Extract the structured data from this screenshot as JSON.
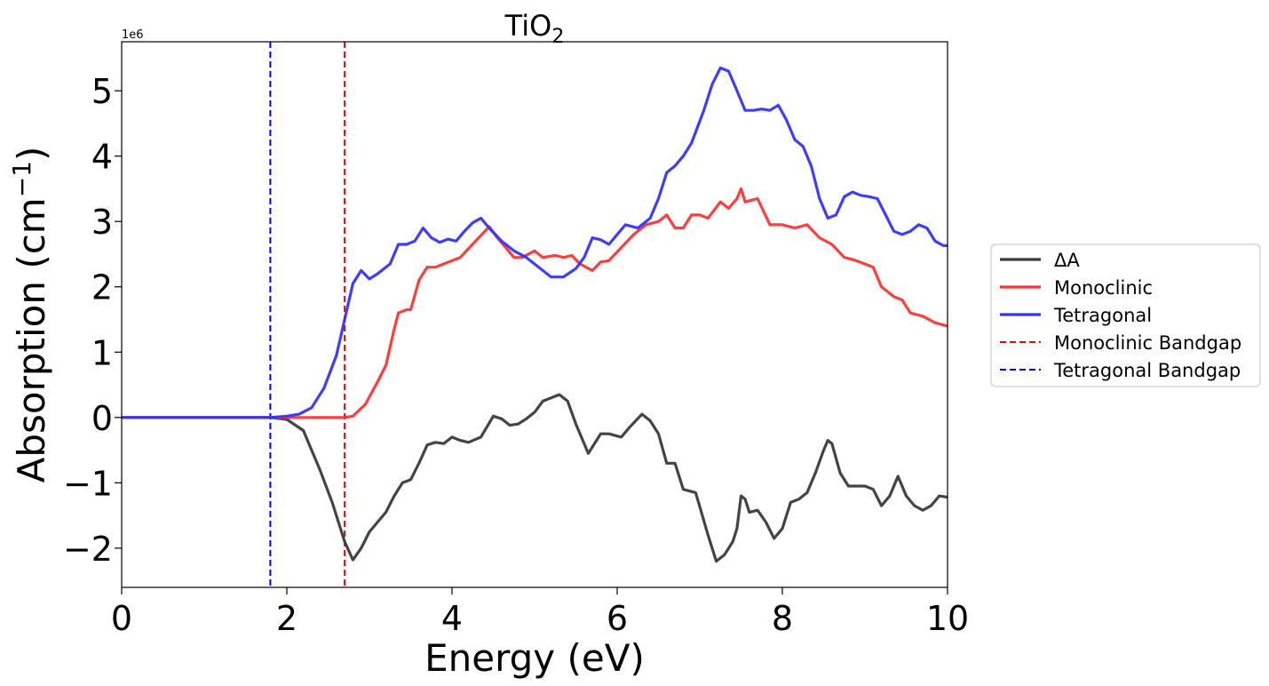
{
  "chart_data": {
    "type": "line",
    "title_main": "TiO",
    "title_sub": "2",
    "xlabel": "Energy (eV)",
    "ylabel_main": "Absorption (cm",
    "ylabel_sup": "−1",
    "ylabel_close": ")",
    "y_offset_text": "1e6",
    "xlim": [
      0,
      10
    ],
    "ylim": [
      -2.6,
      5.75
    ],
    "x_ticks": [
      0,
      2,
      4,
      6,
      8,
      10
    ],
    "x_tick_labels": [
      "0",
      "2",
      "4",
      "6",
      "8",
      "10"
    ],
    "y_ticks": [
      -2,
      -1,
      0,
      1,
      2,
      3,
      4,
      5
    ],
    "y_tick_labels": [
      "−2",
      "−1",
      "0",
      "1",
      "2",
      "3",
      "4",
      "5"
    ],
    "grid": false,
    "legend_position": "outside-right",
    "series": [
      {
        "name": "ΔA",
        "color": "#3a3a3a",
        "style": "solid",
        "points": [
          [
            0,
            0
          ],
          [
            1.8,
            0
          ],
          [
            2.0,
            -0.03
          ],
          [
            2.2,
            -0.2
          ],
          [
            2.4,
            -0.8
          ],
          [
            2.55,
            -1.3
          ],
          [
            2.7,
            -1.9
          ],
          [
            2.8,
            -2.18
          ],
          [
            2.9,
            -2.0
          ],
          [
            3.0,
            -1.75
          ],
          [
            3.2,
            -1.45
          ],
          [
            3.3,
            -1.2
          ],
          [
            3.4,
            -1.0
          ],
          [
            3.5,
            -0.95
          ],
          [
            3.6,
            -0.7
          ],
          [
            3.7,
            -0.42
          ],
          [
            3.8,
            -0.38
          ],
          [
            3.9,
            -0.4
          ],
          [
            4.0,
            -0.3
          ],
          [
            4.1,
            -0.35
          ],
          [
            4.2,
            -0.38
          ],
          [
            4.35,
            -0.3
          ],
          [
            4.5,
            0.02
          ],
          [
            4.6,
            -0.02
          ],
          [
            4.7,
            -0.12
          ],
          [
            4.8,
            -0.1
          ],
          [
            4.9,
            -0.02
          ],
          [
            5.0,
            0.08
          ],
          [
            5.1,
            0.25
          ],
          [
            5.3,
            0.35
          ],
          [
            5.4,
            0.25
          ],
          [
            5.5,
            -0.1
          ],
          [
            5.65,
            -0.55
          ],
          [
            5.8,
            -0.25
          ],
          [
            5.9,
            -0.25
          ],
          [
            6.05,
            -0.3
          ],
          [
            6.15,
            -0.15
          ],
          [
            6.3,
            0.05
          ],
          [
            6.4,
            -0.05
          ],
          [
            6.5,
            -0.25
          ],
          [
            6.6,
            -0.7
          ],
          [
            6.7,
            -0.7
          ],
          [
            6.8,
            -1.1
          ],
          [
            6.95,
            -1.15
          ],
          [
            7.1,
            -1.8
          ],
          [
            7.2,
            -2.2
          ],
          [
            7.3,
            -2.1
          ],
          [
            7.4,
            -1.9
          ],
          [
            7.45,
            -1.7
          ],
          [
            7.5,
            -1.2
          ],
          [
            7.55,
            -1.25
          ],
          [
            7.6,
            -1.45
          ],
          [
            7.7,
            -1.42
          ],
          [
            7.8,
            -1.6
          ],
          [
            7.9,
            -1.85
          ],
          [
            8.0,
            -1.7
          ],
          [
            8.1,
            -1.3
          ],
          [
            8.2,
            -1.25
          ],
          [
            8.3,
            -1.15
          ],
          [
            8.4,
            -0.85
          ],
          [
            8.5,
            -0.5
          ],
          [
            8.55,
            -0.35
          ],
          [
            8.6,
            -0.4
          ],
          [
            8.7,
            -0.85
          ],
          [
            8.8,
            -1.05
          ],
          [
            9.0,
            -1.05
          ],
          [
            9.1,
            -1.1
          ],
          [
            9.2,
            -1.35
          ],
          [
            9.3,
            -1.2
          ],
          [
            9.4,
            -0.9
          ],
          [
            9.5,
            -1.2
          ],
          [
            9.6,
            -1.35
          ],
          [
            9.7,
            -1.42
          ],
          [
            9.8,
            -1.35
          ],
          [
            9.9,
            -1.2
          ],
          [
            10.0,
            -1.22
          ]
        ]
      },
      {
        "name": "Monoclinic",
        "color": "#ff3333",
        "style": "solid",
        "points": [
          [
            0,
            0
          ],
          [
            2.7,
            0
          ],
          [
            2.8,
            0.02
          ],
          [
            2.95,
            0.2
          ],
          [
            3.1,
            0.55
          ],
          [
            3.2,
            0.8
          ],
          [
            3.3,
            1.35
          ],
          [
            3.35,
            1.6
          ],
          [
            3.45,
            1.65
          ],
          [
            3.5,
            1.65
          ],
          [
            3.6,
            2.1
          ],
          [
            3.7,
            2.3
          ],
          [
            3.8,
            2.3
          ],
          [
            3.9,
            2.35
          ],
          [
            4.0,
            2.4
          ],
          [
            4.1,
            2.45
          ],
          [
            4.3,
            2.72
          ],
          [
            4.45,
            2.92
          ],
          [
            4.55,
            2.75
          ],
          [
            4.65,
            2.6
          ],
          [
            4.75,
            2.45
          ],
          [
            4.85,
            2.45
          ],
          [
            5.0,
            2.55
          ],
          [
            5.1,
            2.45
          ],
          [
            5.25,
            2.48
          ],
          [
            5.35,
            2.45
          ],
          [
            5.45,
            2.48
          ],
          [
            5.55,
            2.35
          ],
          [
            5.7,
            2.25
          ],
          [
            5.8,
            2.38
          ],
          [
            5.9,
            2.4
          ],
          [
            6.05,
            2.6
          ],
          [
            6.2,
            2.8
          ],
          [
            6.35,
            2.95
          ],
          [
            6.5,
            3.0
          ],
          [
            6.6,
            3.1
          ],
          [
            6.7,
            2.9
          ],
          [
            6.8,
            2.9
          ],
          [
            6.9,
            3.1
          ],
          [
            7.0,
            3.1
          ],
          [
            7.1,
            3.05
          ],
          [
            7.25,
            3.3
          ],
          [
            7.35,
            3.2
          ],
          [
            7.45,
            3.35
          ],
          [
            7.5,
            3.5
          ],
          [
            7.55,
            3.3
          ],
          [
            7.7,
            3.35
          ],
          [
            7.85,
            2.95
          ],
          [
            8.0,
            2.95
          ],
          [
            8.15,
            2.9
          ],
          [
            8.3,
            2.95
          ],
          [
            8.45,
            2.75
          ],
          [
            8.6,
            2.65
          ],
          [
            8.75,
            2.45
          ],
          [
            8.85,
            2.42
          ],
          [
            9.0,
            2.35
          ],
          [
            9.1,
            2.3
          ],
          [
            9.2,
            2.0
          ],
          [
            9.35,
            1.85
          ],
          [
            9.45,
            1.8
          ],
          [
            9.55,
            1.6
          ],
          [
            9.7,
            1.55
          ],
          [
            9.85,
            1.45
          ],
          [
            10.0,
            1.4
          ]
        ]
      },
      {
        "name": "Tetragonal",
        "color": "#3333ff",
        "style": "solid",
        "points": [
          [
            0,
            0
          ],
          [
            1.8,
            0
          ],
          [
            2.0,
            0.02
          ],
          [
            2.15,
            0.05
          ],
          [
            2.3,
            0.15
          ],
          [
            2.45,
            0.45
          ],
          [
            2.6,
            0.95
          ],
          [
            2.7,
            1.5
          ],
          [
            2.8,
            2.05
          ],
          [
            2.9,
            2.25
          ],
          [
            3.0,
            2.12
          ],
          [
            3.1,
            2.2
          ],
          [
            3.25,
            2.35
          ],
          [
            3.35,
            2.65
          ],
          [
            3.45,
            2.65
          ],
          [
            3.55,
            2.7
          ],
          [
            3.65,
            2.9
          ],
          [
            3.75,
            2.75
          ],
          [
            3.85,
            2.68
          ],
          [
            3.95,
            2.73
          ],
          [
            4.05,
            2.7
          ],
          [
            4.15,
            2.85
          ],
          [
            4.25,
            2.98
          ],
          [
            4.35,
            3.05
          ],
          [
            4.45,
            2.9
          ],
          [
            4.6,
            2.7
          ],
          [
            4.75,
            2.55
          ],
          [
            4.9,
            2.45
          ],
          [
            5.05,
            2.3
          ],
          [
            5.2,
            2.15
          ],
          [
            5.35,
            2.15
          ],
          [
            5.5,
            2.28
          ],
          [
            5.6,
            2.45
          ],
          [
            5.7,
            2.75
          ],
          [
            5.8,
            2.72
          ],
          [
            5.9,
            2.65
          ],
          [
            6.0,
            2.8
          ],
          [
            6.1,
            2.95
          ],
          [
            6.25,
            2.9
          ],
          [
            6.4,
            3.05
          ],
          [
            6.5,
            3.35
          ],
          [
            6.6,
            3.75
          ],
          [
            6.7,
            3.85
          ],
          [
            6.8,
            4.0
          ],
          [
            6.9,
            4.2
          ],
          [
            7.05,
            4.7
          ],
          [
            7.15,
            5.1
          ],
          [
            7.25,
            5.35
          ],
          [
            7.35,
            5.3
          ],
          [
            7.45,
            5.0
          ],
          [
            7.55,
            4.7
          ],
          [
            7.65,
            4.7
          ],
          [
            7.75,
            4.72
          ],
          [
            7.85,
            4.7
          ],
          [
            7.95,
            4.78
          ],
          [
            8.05,
            4.55
          ],
          [
            8.15,
            4.25
          ],
          [
            8.25,
            4.15
          ],
          [
            8.35,
            3.85
          ],
          [
            8.45,
            3.35
          ],
          [
            8.55,
            3.05
          ],
          [
            8.65,
            3.1
          ],
          [
            8.75,
            3.38
          ],
          [
            8.85,
            3.45
          ],
          [
            8.95,
            3.4
          ],
          [
            9.05,
            3.38
          ],
          [
            9.15,
            3.35
          ],
          [
            9.25,
            3.1
          ],
          [
            9.35,
            2.85
          ],
          [
            9.45,
            2.8
          ],
          [
            9.55,
            2.85
          ],
          [
            9.65,
            2.95
          ],
          [
            9.75,
            2.9
          ],
          [
            9.85,
            2.7
          ],
          [
            9.95,
            2.63
          ],
          [
            10.0,
            2.63
          ]
        ]
      },
      {
        "name": "Monoclinic Bandgap",
        "color": "#ff0000",
        "style": "dashed",
        "vline_x": 2.7
      },
      {
        "name": "Tetragonal Bandgap",
        "color": "#0000ff",
        "style": "dashed",
        "vline_x": 1.8
      }
    ]
  }
}
